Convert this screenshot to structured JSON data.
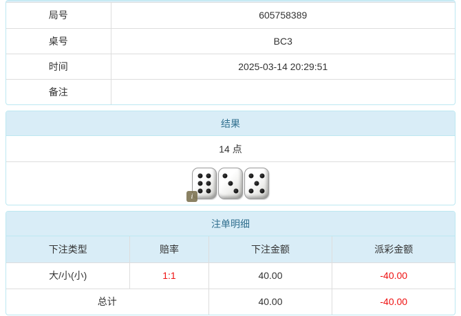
{
  "colors": {
    "panel_border": "#bce8f1",
    "heading_bg": "#d9edf7",
    "heading_text": "#31708f",
    "table_border": "#dddddd",
    "text": "#333333",
    "negative": "#ee1111",
    "page_bg": "#ffffff"
  },
  "info_table": {
    "rows": [
      {
        "label": "局号",
        "value": "605758389"
      },
      {
        "label": "桌号",
        "value": "BC3"
      },
      {
        "label": "时间",
        "value": "2025-03-14 20:29:51"
      },
      {
        "label": "备注",
        "value": ""
      }
    ]
  },
  "result_panel": {
    "title": "结果",
    "points": "14 点",
    "dice": [
      6,
      3,
      5
    ],
    "info_icon": "i"
  },
  "bets_panel": {
    "title": "注单明细",
    "columns": [
      "下注类型",
      "赔率",
      "下注金额",
      "派彩金额"
    ],
    "rows": [
      {
        "type": "大/小(小)",
        "odds": "1:1",
        "bet": "40.00",
        "payout": "-40.00"
      }
    ],
    "total": {
      "label": "总计",
      "bet": "40.00",
      "payout": "-40.00"
    }
  }
}
